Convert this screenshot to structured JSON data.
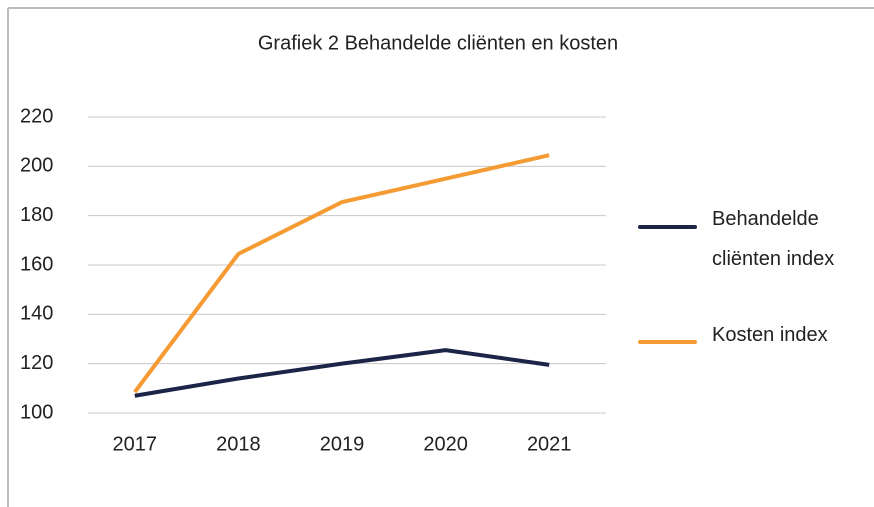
{
  "chart_data": {
    "type": "line",
    "title": "Grafiek 2 Behandelde cliënten en kosten",
    "categories": [
      "2017",
      "2018",
      "2019",
      "2020",
      "2021"
    ],
    "series": [
      {
        "name": "Behandelde cliënten index",
        "color": "#1c2448",
        "values": [
          107,
          114,
          120,
          125.5,
          119.5
        ]
      },
      {
        "name": "Kosten index",
        "color": "#f49b34",
        "values": [
          108.5,
          164.5,
          185.5,
          195,
          204.5
        ]
      }
    ],
    "ylim": [
      100,
      220
    ],
    "yticks": [
      100,
      120,
      140,
      160,
      180,
      200,
      220
    ],
    "grid": true,
    "legend": "right"
  }
}
